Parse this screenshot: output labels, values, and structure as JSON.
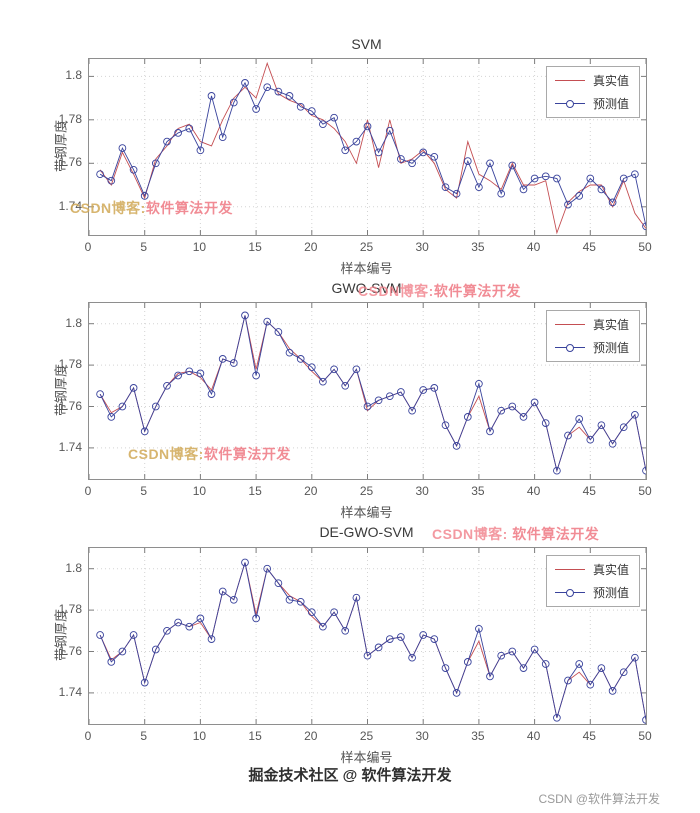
{
  "colors": {
    "true_line": "#c44e52",
    "pred_line": "#39439c",
    "grid": "#d4d4d4",
    "tick": "#7d7d7d",
    "axis_box": "#8e8e8e",
    "tick_text": "#575757",
    "watermark_pink": "#ee7a82",
    "watermark_gold": "#d0a856"
  },
  "watermarks": {
    "wm1": {
      "prefix": "CSDN博客:",
      "suffix": "软件算法开发"
    },
    "wm2": {
      "prefix": "CSDN博客:",
      "suffix": "软件算法开发"
    },
    "wm3": {
      "prefix": "CSDN博客:",
      "suffix": "软件算法开发"
    },
    "wm4": {
      "prefix": "CSDN博客: ",
      "suffix": "软件算法开发"
    }
  },
  "footer": {
    "main": "掘金技术社区 @ 软件算法开发",
    "sub": "CSDN @软件算法开发"
  },
  "chart_data": [
    {
      "type": "line",
      "title": "SVM",
      "xlabel": "样本编号",
      "ylabel": "带钢厚度",
      "legend_position": "top-right",
      "grid": true,
      "xlim": [
        0,
        50
      ],
      "ylim": [
        1.727,
        1.808
      ],
      "xticks": [
        0,
        5,
        10,
        15,
        20,
        25,
        30,
        35,
        40,
        45,
        50
      ],
      "yticks": [
        1.74,
        1.76,
        1.78,
        1.8
      ],
      "ytick_labels": [
        "1.74",
        "1.76",
        "1.78",
        "1.8"
      ],
      "x": [
        1,
        2,
        3,
        4,
        5,
        6,
        7,
        8,
        9,
        10,
        11,
        12,
        13,
        14,
        15,
        16,
        17,
        18,
        19,
        20,
        21,
        22,
        23,
        24,
        25,
        26,
        27,
        28,
        29,
        30,
        31,
        32,
        33,
        34,
        35,
        36,
        37,
        38,
        39,
        40,
        41,
        42,
        43,
        44,
        45,
        46,
        47,
        48,
        49,
        50
      ],
      "series": [
        {
          "name": "真实值",
          "color": "#c44e52",
          "marker": "none",
          "values": [
            1.757,
            1.75,
            1.765,
            1.755,
            1.744,
            1.762,
            1.768,
            1.776,
            1.778,
            1.77,
            1.768,
            1.78,
            1.79,
            1.795,
            1.79,
            1.806,
            1.792,
            1.789,
            1.787,
            1.782,
            1.78,
            1.776,
            1.77,
            1.76,
            1.78,
            1.758,
            1.78,
            1.76,
            1.762,
            1.766,
            1.76,
            1.748,
            1.744,
            1.77,
            1.755,
            1.752,
            1.748,
            1.76,
            1.75,
            1.75,
            1.752,
            1.728,
            1.742,
            1.747,
            1.75,
            1.75,
            1.74,
            1.752,
            1.737,
            1.73
          ]
        },
        {
          "name": "预测值",
          "color": "#39439c",
          "marker": "circle",
          "values": [
            1.755,
            1.752,
            1.767,
            1.757,
            1.745,
            1.76,
            1.77,
            1.774,
            1.776,
            1.766,
            1.791,
            1.772,
            1.788,
            1.797,
            1.785,
            1.795,
            1.793,
            1.791,
            1.786,
            1.784,
            1.778,
            1.781,
            1.766,
            1.77,
            1.777,
            1.765,
            1.775,
            1.762,
            1.76,
            1.765,
            1.763,
            1.749,
            1.746,
            1.761,
            1.749,
            1.76,
            1.746,
            1.759,
            1.748,
            1.753,
            1.754,
            1.753,
            1.741,
            1.745,
            1.753,
            1.748,
            1.742,
            1.753,
            1.755,
            1.731
          ]
        }
      ]
    },
    {
      "type": "line",
      "title": "GWO-SVM",
      "xlabel": "样本编号",
      "ylabel": "带钢厚度",
      "legend_position": "top-right",
      "grid": true,
      "xlim": [
        0,
        50
      ],
      "ylim": [
        1.725,
        1.81
      ],
      "xticks": [
        0,
        5,
        10,
        15,
        20,
        25,
        30,
        35,
        40,
        45,
        50
      ],
      "yticks": [
        1.74,
        1.76,
        1.78,
        1.8
      ],
      "ytick_labels": [
        "1.74",
        "1.76",
        "1.78",
        "1.8"
      ],
      "x": [
        1,
        2,
        3,
        4,
        5,
        6,
        7,
        8,
        9,
        10,
        11,
        12,
        13,
        14,
        15,
        16,
        17,
        18,
        19,
        20,
        21,
        22,
        23,
        24,
        25,
        26,
        27,
        28,
        29,
        30,
        31,
        32,
        33,
        34,
        35,
        36,
        37,
        38,
        39,
        40,
        41,
        42,
        43,
        44,
        45,
        46,
        47,
        48,
        49,
        50
      ],
      "series": [
        {
          "name": "真实值",
          "color": "#c44e52",
          "marker": "none",
          "values": [
            1.766,
            1.757,
            1.76,
            1.769,
            1.748,
            1.76,
            1.77,
            1.776,
            1.777,
            1.774,
            1.768,
            1.783,
            1.781,
            1.804,
            1.778,
            1.801,
            1.796,
            1.788,
            1.783,
            1.777,
            1.772,
            1.778,
            1.77,
            1.778,
            1.758,
            1.763,
            1.765,
            1.767,
            1.758,
            1.768,
            1.769,
            1.751,
            1.741,
            1.755,
            1.765,
            1.748,
            1.758,
            1.76,
            1.755,
            1.762,
            1.752,
            1.729,
            1.746,
            1.75,
            1.744,
            1.751,
            1.742,
            1.75,
            1.756,
            1.729
          ]
        },
        {
          "name": "预测值",
          "color": "#39439c",
          "marker": "circle",
          "values": [
            1.766,
            1.755,
            1.76,
            1.769,
            1.748,
            1.76,
            1.77,
            1.775,
            1.777,
            1.776,
            1.766,
            1.783,
            1.781,
            1.804,
            1.775,
            1.801,
            1.796,
            1.786,
            1.783,
            1.779,
            1.772,
            1.778,
            1.77,
            1.778,
            1.76,
            1.763,
            1.765,
            1.767,
            1.758,
            1.768,
            1.769,
            1.751,
            1.741,
            1.755,
            1.771,
            1.748,
            1.758,
            1.76,
            1.755,
            1.762,
            1.752,
            1.729,
            1.746,
            1.754,
            1.744,
            1.751,
            1.742,
            1.75,
            1.756,
            1.729
          ]
        }
      ]
    },
    {
      "type": "line",
      "title": "DE-GWO-SVM",
      "xlabel": "样本编号",
      "ylabel": "带钢厚度",
      "legend_position": "top-right",
      "grid": true,
      "xlim": [
        0,
        50
      ],
      "ylim": [
        1.725,
        1.81
      ],
      "xticks": [
        0,
        5,
        10,
        15,
        20,
        25,
        30,
        35,
        40,
        45,
        50
      ],
      "yticks": [
        1.74,
        1.76,
        1.78,
        1.8
      ],
      "ytick_labels": [
        "1.74",
        "1.76",
        "1.78",
        "1.8"
      ],
      "x": [
        1,
        2,
        3,
        4,
        5,
        6,
        7,
        8,
        9,
        10,
        11,
        12,
        13,
        14,
        15,
        16,
        17,
        18,
        19,
        20,
        21,
        22,
        23,
        24,
        25,
        26,
        27,
        28,
        29,
        30,
        31,
        32,
        33,
        34,
        35,
        36,
        37,
        38,
        39,
        40,
        41,
        42,
        43,
        44,
        45,
        46,
        47,
        48,
        49,
        50
      ],
      "series": [
        {
          "name": "真实值",
          "color": "#c44e52",
          "marker": "none",
          "values": [
            1.768,
            1.756,
            1.76,
            1.768,
            1.745,
            1.761,
            1.77,
            1.774,
            1.772,
            1.774,
            1.766,
            1.789,
            1.785,
            1.803,
            1.778,
            1.8,
            1.793,
            1.787,
            1.784,
            1.777,
            1.772,
            1.779,
            1.77,
            1.786,
            1.758,
            1.762,
            1.766,
            1.767,
            1.757,
            1.768,
            1.766,
            1.752,
            1.74,
            1.755,
            1.765,
            1.748,
            1.758,
            1.76,
            1.752,
            1.761,
            1.754,
            1.728,
            1.746,
            1.75,
            1.744,
            1.752,
            1.741,
            1.75,
            1.757,
            1.727
          ]
        },
        {
          "name": "预测值",
          "color": "#39439c",
          "marker": "circle",
          "values": [
            1.768,
            1.755,
            1.76,
            1.768,
            1.745,
            1.761,
            1.77,
            1.774,
            1.772,
            1.776,
            1.766,
            1.789,
            1.785,
            1.803,
            1.776,
            1.8,
            1.793,
            1.785,
            1.784,
            1.779,
            1.772,
            1.779,
            1.77,
            1.786,
            1.758,
            1.762,
            1.766,
            1.767,
            1.757,
            1.768,
            1.766,
            1.752,
            1.74,
            1.755,
            1.771,
            1.748,
            1.758,
            1.76,
            1.752,
            1.761,
            1.754,
            1.728,
            1.746,
            1.754,
            1.744,
            1.752,
            1.741,
            1.75,
            1.757,
            1.727
          ]
        }
      ]
    }
  ]
}
